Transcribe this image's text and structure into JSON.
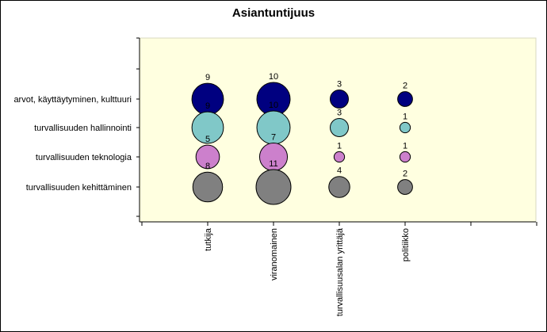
{
  "chart_data": {
    "type": "bubble",
    "title": "Asiantuntijuus",
    "categories": [
      "tutkija",
      "viranomainen",
      "turvallisuusalan yrittäjä",
      "politiikko"
    ],
    "rows": [
      "arvot, käyttäytyminen, kulttuuri",
      "turvallisuuden hallinnointi",
      "turvallisuuden teknologia",
      "turvallisuuden kehittäminen"
    ],
    "series": [
      {
        "name": "arvot, käyttäytyminen, kulttuuri",
        "values": [
          9,
          10,
          3,
          2
        ],
        "color": "#000080"
      },
      {
        "name": "turvallisuuden hallinnointi",
        "values": [
          9,
          10,
          3,
          1
        ],
        "color": "#80c8c8"
      },
      {
        "name": "turvallisuuden teknologia",
        "values": [
          5,
          7,
          1,
          1
        ],
        "color": "#cc80cc"
      },
      {
        "name": "turvallisuuden kehittäminen",
        "values": [
          8,
          11,
          4,
          2
        ],
        "color": "#808080"
      }
    ],
    "grid": false,
    "plot_background": "#ffffe0"
  }
}
